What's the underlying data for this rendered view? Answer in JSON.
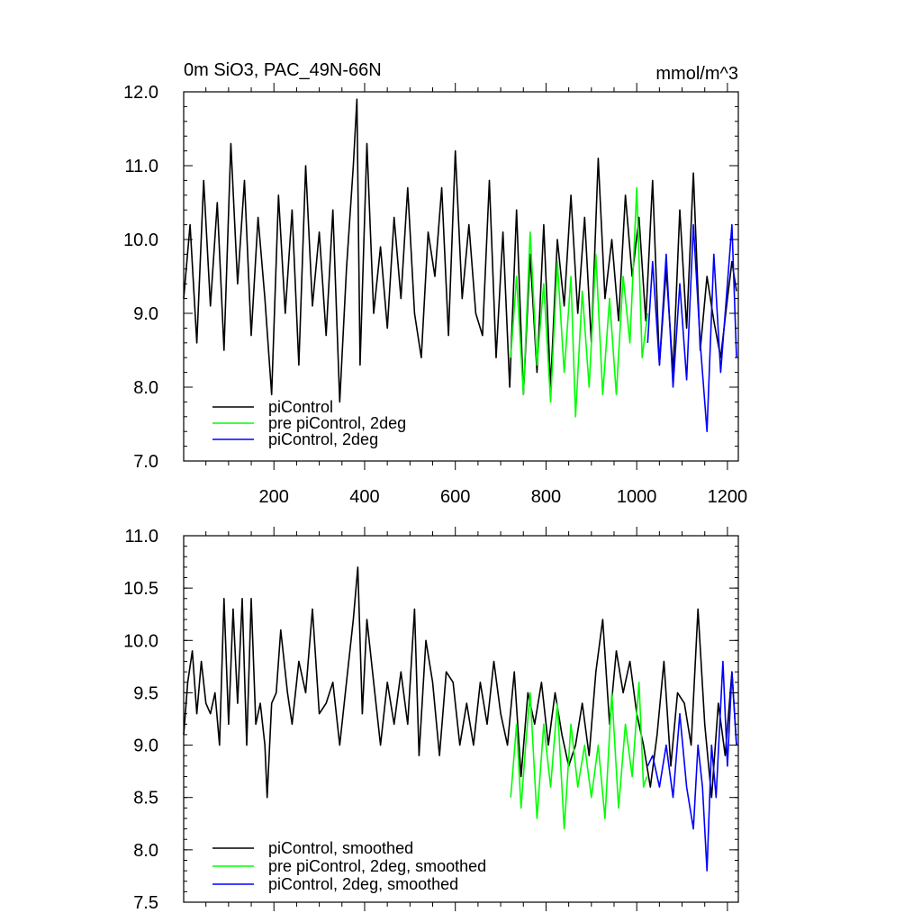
{
  "figure": {
    "title_left": "0m SiO3, PAC_49N-66N",
    "title_right": "mmol/m^3"
  },
  "chart_data": [
    {
      "type": "line",
      "panel": "top",
      "xlim": [
        1,
        1224
      ],
      "ylim": [
        7.0,
        12.0
      ],
      "x_ticks": [
        200,
        400,
        600,
        800,
        1000,
        1200
      ],
      "x_tick_labels": [
        "200",
        "400",
        "600",
        "800",
        "1000",
        "1200"
      ],
      "y_ticks": [
        7.0,
        8.0,
        9.0,
        10.0,
        11.0,
        12.0
      ],
      "y_tick_labels": [
        "7.0",
        "8.0",
        "9.0",
        "10.0",
        "11.0",
        "12.0"
      ],
      "legend_position": "bottom-left",
      "series": [
        {
          "name": "piControl",
          "color": "#000000",
          "x": [
            1,
            15,
            30,
            45,
            60,
            75,
            90,
            105,
            120,
            135,
            150,
            165,
            180,
            195,
            210,
            225,
            240,
            255,
            270,
            285,
            300,
            315,
            330,
            345,
            360,
            375,
            383,
            390,
            405,
            420,
            435,
            450,
            465,
            480,
            495,
            510,
            525,
            540,
            555,
            570,
            585,
            600,
            615,
            630,
            645,
            660,
            675,
            690,
            705,
            720,
            735,
            750,
            765,
            780,
            795,
            810,
            825,
            840,
            855,
            870,
            885,
            900,
            915,
            930,
            945,
            960,
            975,
            990,
            1005,
            1020,
            1035,
            1050,
            1065,
            1080,
            1095,
            1110,
            1125,
            1140,
            1155,
            1170,
            1185,
            1200,
            1210,
            1220
          ],
          "values": [
            9.2,
            10.2,
            8.6,
            10.8,
            9.1,
            10.5,
            8.5,
            11.3,
            9.4,
            10.8,
            8.7,
            10.3,
            9.2,
            7.9,
            10.6,
            9.0,
            10.4,
            8.3,
            11.0,
            9.1,
            10.1,
            8.7,
            10.4,
            7.8,
            9.6,
            11.0,
            11.9,
            8.3,
            11.3,
            9.0,
            9.9,
            8.8,
            10.3,
            9.2,
            10.7,
            9.0,
            8.4,
            10.1,
            9.5,
            10.7,
            8.7,
            11.2,
            9.2,
            10.2,
            9.0,
            8.7,
            10.8,
            8.4,
            10.1,
            8.0,
            10.4,
            7.9,
            9.8,
            8.2,
            10.2,
            8.0,
            10.0,
            9.1,
            10.6,
            9.0,
            10.3,
            8.6,
            11.1,
            9.2,
            10.0,
            8.9,
            10.6,
            9.5,
            10.3,
            8.9,
            10.8,
            8.3,
            9.6,
            8.2,
            10.4,
            8.8,
            10.9,
            8.5,
            9.5,
            8.9,
            8.4,
            9.2,
            9.7,
            9.3
          ]
        },
        {
          "name": "pre piControl, 2deg",
          "color": "#00ff00",
          "x": [
            722,
            735,
            750,
            765,
            780,
            795,
            810,
            825,
            840,
            855,
            865,
            880,
            895,
            910,
            925,
            940,
            955,
            970,
            985,
            1000,
            1012,
            1024
          ],
          "values": [
            8.4,
            9.5,
            7.9,
            10.1,
            8.3,
            9.4,
            7.8,
            9.7,
            8.2,
            9.5,
            7.6,
            9.3,
            8.0,
            9.8,
            7.9,
            9.2,
            7.9,
            9.5,
            8.6,
            10.7,
            8.4,
            9.0
          ]
        },
        {
          "name": "piControl, 2deg",
          "color": "#0000ff",
          "x": [
            1024,
            1035,
            1050,
            1065,
            1080,
            1095,
            1110,
            1125,
            1140,
            1155,
            1170,
            1185,
            1200,
            1210,
            1220
          ],
          "values": [
            8.6,
            9.7,
            8.3,
            9.8,
            8.0,
            9.4,
            8.1,
            10.2,
            8.6,
            7.4,
            9.8,
            8.2,
            9.4,
            10.2,
            8.4
          ]
        }
      ]
    },
    {
      "type": "line",
      "panel": "bottom",
      "xlim": [
        1,
        1224
      ],
      "ylim": [
        7.5,
        11.0
      ],
      "y_ticks": [
        7.5,
        8.0,
        8.5,
        9.0,
        9.5,
        10.0,
        10.5,
        11.0
      ],
      "y_tick_labels": [
        "7.5",
        "8.0",
        "8.5",
        "9.0",
        "9.5",
        "10.0",
        "10.5",
        "11.0"
      ],
      "legend_position": "bottom-left",
      "series": [
        {
          "name": "piControl, smoothed",
          "color": "#000000",
          "x": [
            1,
            10,
            20,
            30,
            40,
            50,
            60,
            70,
            80,
            90,
            100,
            110,
            120,
            130,
            140,
            150,
            160,
            170,
            180,
            185,
            195,
            205,
            215,
            230,
            240,
            255,
            270,
            285,
            300,
            315,
            330,
            345,
            360,
            375,
            385,
            395,
            405,
            420,
            435,
            450,
            465,
            480,
            495,
            510,
            520,
            535,
            550,
            565,
            580,
            595,
            610,
            625,
            640,
            655,
            670,
            685,
            700,
            715,
            730,
            745,
            760,
            775,
            790,
            805,
            820,
            835,
            850,
            865,
            880,
            895,
            910,
            925,
            940,
            955,
            970,
            985,
            1000,
            1015,
            1030,
            1045,
            1060,
            1075,
            1090,
            1105,
            1120,
            1135,
            1150,
            1165,
            1180,
            1195,
            1210,
            1220
          ],
          "values": [
            9.1,
            9.6,
            9.9,
            9.3,
            9.8,
            9.4,
            9.3,
            9.5,
            9.0,
            10.4,
            9.2,
            10.3,
            9.4,
            10.4,
            9.0,
            10.4,
            9.2,
            9.4,
            9.0,
            8.5,
            9.4,
            9.5,
            10.1,
            9.5,
            9.2,
            9.8,
            9.5,
            10.3,
            9.3,
            9.4,
            9.6,
            9.0,
            9.6,
            10.2,
            10.7,
            9.3,
            10.2,
            9.6,
            9.0,
            9.6,
            9.2,
            9.7,
            9.2,
            10.3,
            8.9,
            10.0,
            9.6,
            8.9,
            9.7,
            9.6,
            9.0,
            9.4,
            9.0,
            9.6,
            9.2,
            9.8,
            9.3,
            9.0,
            9.7,
            8.7,
            9.5,
            9.2,
            9.6,
            9.0,
            9.5,
            9.1,
            8.8,
            9.0,
            9.4,
            8.9,
            9.7,
            10.2,
            9.2,
            9.9,
            9.5,
            9.8,
            9.3,
            9.0,
            8.6,
            9.1,
            9.8,
            8.8,
            9.5,
            9.4,
            9.0,
            10.3,
            9.2,
            8.5,
            9.4,
            8.9,
            9.7,
            9.0
          ]
        },
        {
          "name": "pre piControl, 2deg, smoothed",
          "color": "#00ff00",
          "x": [
            722,
            735,
            745,
            755,
            765,
            780,
            795,
            810,
            825,
            840,
            855,
            870,
            885,
            900,
            915,
            930,
            945,
            960,
            975,
            990,
            1005,
            1015,
            1022
          ],
          "values": [
            8.5,
            9.2,
            8.4,
            9.0,
            9.5,
            8.3,
            9.2,
            8.6,
            9.4,
            8.2,
            9.2,
            8.6,
            9.0,
            8.5,
            9.0,
            8.3,
            9.5,
            8.4,
            9.2,
            8.7,
            9.6,
            8.6,
            8.7
          ]
        },
        {
          "name": "piControl, 2deg, smoothed",
          "color": "#0000ff",
          "x": [
            1024,
            1035,
            1050,
            1065,
            1080,
            1095,
            1110,
            1125,
            1135,
            1145,
            1155,
            1165,
            1175,
            1190,
            1200,
            1210,
            1220
          ],
          "values": [
            8.8,
            8.9,
            8.6,
            9.0,
            8.5,
            9.3,
            8.6,
            8.2,
            9.0,
            8.6,
            7.8,
            9.0,
            8.5,
            9.8,
            8.8,
            9.7,
            9.0
          ]
        }
      ]
    }
  ]
}
